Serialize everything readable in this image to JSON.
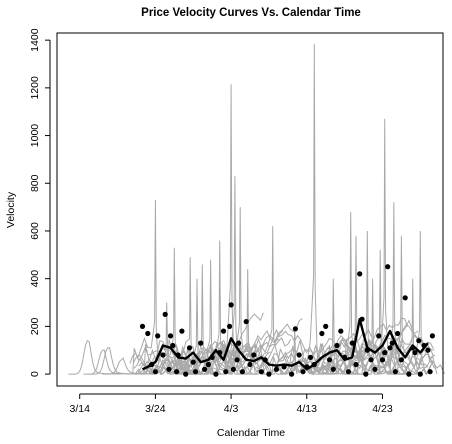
{
  "chart_data": {
    "type": "line",
    "title": "Price Velocity Curves Vs. Calendar Time",
    "xlabel": "Calendar Time",
    "ylabel": "Velocity",
    "xlim": [
      -3,
      48
    ],
    "ylim": [
      -50,
      1430
    ],
    "x_ticks": [
      {
        "x": 0,
        "label": "3/14"
      },
      {
        "x": 10,
        "label": "3/24"
      },
      {
        "x": 20,
        "label": "4/3"
      },
      {
        "x": 30,
        "label": "4/13"
      },
      {
        "x": 40,
        "label": "4/23"
      }
    ],
    "y_ticks": [
      0,
      200,
      400,
      600,
      800,
      1000,
      1200,
      1400
    ],
    "grid": false,
    "legend": "none",
    "colors": {
      "individual_curves": "#a8a8a8",
      "mean_curve": "#000000",
      "points": "#000000",
      "frame": "#000000"
    },
    "series": [
      {
        "role": "mean-curve",
        "x": [
          8.3,
          9.0,
          10.0,
          11.0,
          12.0,
          13.0,
          14.0,
          15.0,
          16.0,
          17.0,
          18.0,
          19.0,
          20.0,
          21.0,
          22.0,
          23.0,
          24.0,
          25.0,
          26.0,
          27.0,
          28.0,
          29.0,
          30.0,
          31.0,
          32.0,
          33.0,
          34.0,
          35.0,
          36.0,
          37.0,
          38.0,
          39.0,
          40.0,
          41.0,
          42.0,
          43.0,
          44.0,
          45.0,
          46.0
        ],
        "y": [
          20,
          30,
          50,
          120,
          110,
          70,
          65,
          90,
          50,
          60,
          100,
          60,
          150,
          100,
          60,
          55,
          70,
          40,
          35,
          40,
          35,
          50,
          20,
          40,
          70,
          90,
          100,
          60,
          70,
          230,
          110,
          90,
          120,
          180,
          110,
          70,
          120,
          90,
          130
        ]
      },
      {
        "role": "points",
        "x": [
          8.3,
          9.0,
          9.5,
          10.0,
          10.3,
          11.0,
          11.3,
          11.8,
          12.0,
          12.3,
          12.8,
          13.0,
          13.5,
          14.0,
          14.5,
          15.0,
          15.3,
          16.0,
          16.5,
          17.0,
          17.5,
          18.0,
          18.5,
          19.0,
          19.3,
          19.8,
          20.0,
          20.3,
          20.8,
          21.0,
          21.5,
          22.0,
          22.5,
          23.0,
          24.0,
          24.5,
          25.0,
          26.0,
          27.0,
          28.0,
          28.5,
          29.0,
          29.5,
          30.0,
          30.5,
          31.0,
          32.0,
          32.5,
          33.0,
          33.5,
          34.0,
          34.5,
          35.0,
          35.5,
          36.0,
          36.5,
          37.0,
          37.3,
          37.8,
          38.0,
          38.5,
          39.0,
          39.5,
          40.0,
          40.3,
          40.7,
          41.0,
          41.3,
          41.7,
          42.0,
          42.5,
          43.0,
          43.5,
          44.0,
          44.3,
          44.8,
          45.0,
          45.5,
          46.0,
          46.3,
          46.6
        ],
        "y": [
          200,
          170,
          40,
          10,
          160,
          80,
          250,
          20,
          160,
          120,
          10,
          80,
          180,
          0,
          110,
          50,
          10,
          130,
          20,
          40,
          70,
          0,
          90,
          180,
          10,
          200,
          290,
          20,
          60,
          130,
          10,
          220,
          40,
          80,
          10,
          60,
          0,
          20,
          30,
          0,
          190,
          80,
          10,
          30,
          70,
          40,
          170,
          200,
          60,
          20,
          120,
          180,
          70,
          10,
          130,
          40,
          420,
          230,
          0,
          100,
          60,
          20,
          160,
          60,
          90,
          450,
          110,
          130,
          10,
          170,
          60,
          320,
          0,
          110,
          90,
          140,
          0,
          120,
          100,
          10,
          160
        ]
      }
    ]
  }
}
